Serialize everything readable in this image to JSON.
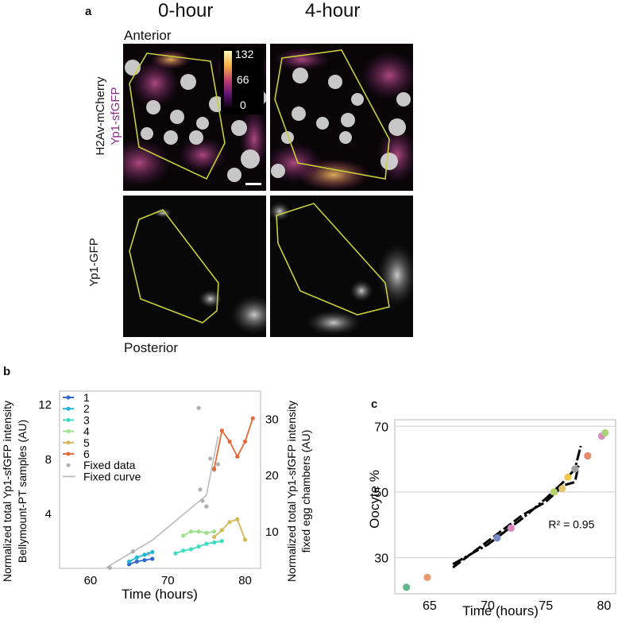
{
  "panel_a": {
    "letter": "a",
    "col_titles": [
      "0-hour",
      "4-hour"
    ],
    "anterior": "Anterior",
    "posterior": "Posterior",
    "row1_label_line1": "H2Av-mCherry",
    "row1_label_line2": "Yp1-sfGFP",
    "row2_label": "Yp1-GFP",
    "colorbar_ticks": [
      "132",
      "66",
      "0"
    ],
    "colors": {
      "magenta": "#8b2a8b",
      "outline": "#c8cf3a"
    }
  },
  "panel_b": {
    "letter": "b",
    "chart_data": {
      "type": "line",
      "xlabel": "Time (hours)",
      "ylabel_left_line1": "Normalized total Yp1-sfGFP intensity",
      "ylabel_left_line2": "Bellymount-PT samples (AU)",
      "ylabel_right_line1": "Normalized total Yp1-sfGFP intensity",
      "ylabel_right_line2": "fixed egg chambers (AU)",
      "xlim": [
        56,
        82
      ],
      "ylim_left": [
        0,
        13
      ],
      "ylim_right": [
        3.5,
        35
      ],
      "xticks": [
        60,
        70,
        80
      ],
      "yticks_left": [
        4,
        8,
        12
      ],
      "yticks_right": [
        10,
        20,
        30
      ],
      "legend": [
        "1",
        "2",
        "3",
        "4",
        "5",
        "6",
        "Fixed data",
        "Fixed curve"
      ],
      "series": [
        {
          "name": "1",
          "color": "#3366cc",
          "x": [
            65,
            66,
            67,
            68
          ],
          "y": [
            0.3,
            0.5,
            0.6,
            0.7
          ]
        },
        {
          "name": "2",
          "color": "#1fb5d6",
          "x": [
            65,
            66,
            67,
            68
          ],
          "y": [
            0.5,
            0.8,
            1.0,
            1.2
          ]
        },
        {
          "name": "3",
          "color": "#3fdcc0",
          "x": [
            71,
            72,
            73,
            74,
            75,
            76,
            77
          ],
          "y": [
            1.1,
            1.3,
            1.4,
            1.6,
            1.8,
            1.9,
            2.0
          ]
        },
        {
          "name": "4",
          "color": "#9de08a",
          "x": [
            72,
            73,
            74,
            75,
            76
          ],
          "y": [
            2.4,
            2.7,
            2.7,
            2.6,
            2.7
          ]
        },
        {
          "name": "5",
          "color": "#d4b85a",
          "x": [
            76,
            77,
            78,
            79,
            80
          ],
          "y": [
            2.3,
            2.8,
            3.4,
            3.6,
            2.1
          ]
        },
        {
          "name": "6",
          "color": "#e5693a",
          "x": [
            76,
            77,
            78,
            79,
            80,
            81
          ],
          "y": [
            7.3,
            10.1,
            9.3,
            8.2,
            9.3,
            11.0
          ]
        }
      ],
      "fixed_data": {
        "name": "Fixed data",
        "color": "#b0b0b0",
        "x": [
          62.5,
          65.5,
          67.5,
          74,
          74.2,
          74.5,
          75,
          75.5,
          76,
          76.5
        ],
        "y_right": [
          3.6,
          6.5,
          6.1,
          32,
          17.5,
          15.5,
          14.5,
          23,
          21,
          22
        ]
      },
      "fixed_curve": {
        "name": "Fixed curve",
        "color": "#bbbbbb",
        "x": [
          62,
          68,
          75,
          76.5
        ],
        "y_right": [
          3.6,
          8.5,
          16.5,
          27
        ]
      }
    }
  },
  "panel_c": {
    "letter": "c",
    "chart_data": {
      "type": "scatter",
      "xlabel": "Time (hours)",
      "ylabel": "Oocyte %",
      "xlim": [
        62,
        81
      ],
      "ylim": [
        19,
        72
      ],
      "xticks": [
        65,
        70,
        75,
        80
      ],
      "yticks": [
        30,
        50,
        70
      ],
      "annotation": "R² = 0.95",
      "points": [
        {
          "x": 63,
          "y": 21,
          "color": "#5fb88a"
        },
        {
          "x": 64.8,
          "y": 24,
          "color": "#e89a73"
        },
        {
          "x": 70.8,
          "y": 36,
          "color": "#7a8bc4"
        },
        {
          "x": 72,
          "y": 39,
          "color": "#d985c0"
        },
        {
          "x": 75.7,
          "y": 50,
          "color": "#b5d36b"
        },
        {
          "x": 76.4,
          "y": 51,
          "color": "#e5c56a"
        },
        {
          "x": 76.9,
          "y": 54.5,
          "color": "#f0c84a"
        },
        {
          "x": 77.5,
          "y": 57,
          "color": "#a0a0a0"
        },
        {
          "x": 78.6,
          "y": 61,
          "color": "#e88a6a"
        },
        {
          "x": 79.8,
          "y": 67,
          "color": "#d590c0"
        },
        {
          "x": 80.1,
          "y": 68,
          "color": "#aad278"
        }
      ],
      "fit_curve": {
        "x": [
          67,
          70,
          73,
          75,
          76.5,
          77.5,
          78
        ],
        "y": [
          28,
          34,
          42,
          48,
          53,
          57,
          64
        ]
      },
      "fit_curve_2": {
        "x": [
          67,
          70,
          73,
          75,
          76.5,
          77.5,
          77.8
        ],
        "y": [
          27,
          35,
          43,
          47,
          52,
          53,
          58
        ]
      }
    }
  }
}
